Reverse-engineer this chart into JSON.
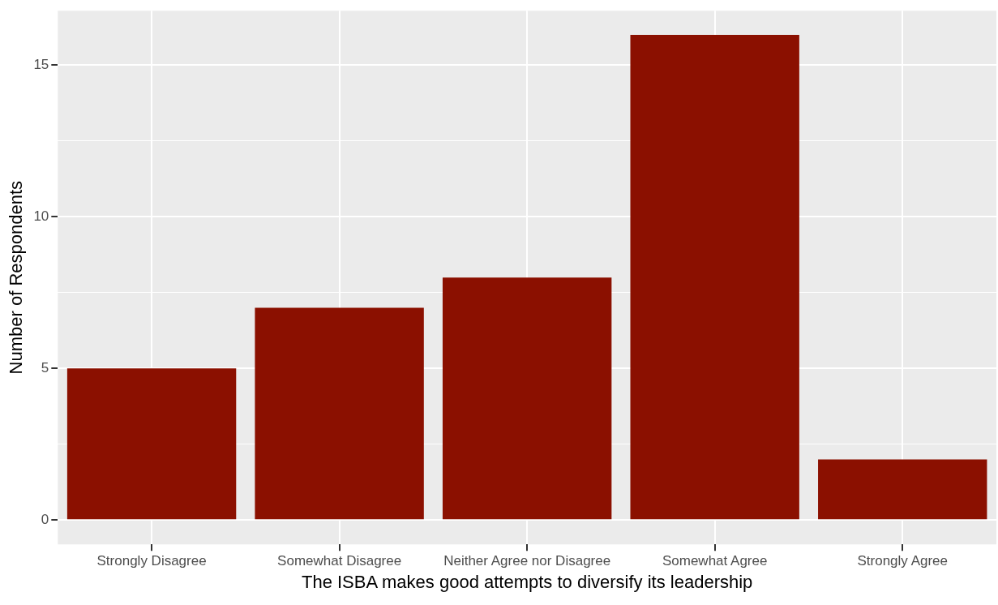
{
  "chart_data": {
    "type": "bar",
    "xlabel": "The ISBA makes good attempts to diversify its leadership",
    "ylabel": "Number of Respondents",
    "categories": [
      "Strongly Disagree",
      "Somewhat Disagree",
      "Neither Agree nor Disagree",
      "Somewhat Agree",
      "Strongly Agree"
    ],
    "values": [
      5,
      7,
      8,
      16,
      2
    ],
    "color": "#8b1000",
    "ylim": [
      -0.8,
      16.8
    ],
    "yticks": [
      0,
      {
        "value": 2.5,
        "label": null
      },
      5,
      {
        "value": 7.5,
        "label": null
      },
      10,
      {
        "value": 12.5,
        "label": null
      },
      15
    ],
    "grid": true,
    "legend": false
  }
}
